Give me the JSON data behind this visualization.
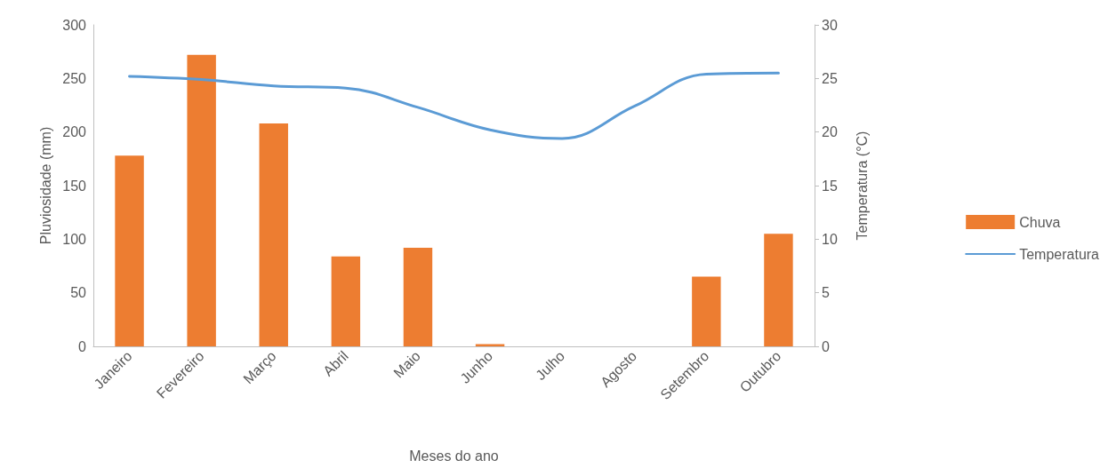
{
  "chart_data": {
    "type": "bar",
    "xlabel": "Meses do ano",
    "ylabel": "Pluviosidade (mm)",
    "y2label": "Temperatura (°C)",
    "categories": [
      "Janeiro",
      "Fevereiro",
      "Março",
      "Abril",
      "Maio",
      "Junho",
      "Julho",
      "Agosto",
      "Setembro",
      "Outubro"
    ],
    "series": [
      {
        "name": "Chuva",
        "color": "#ed7d31",
        "values": [
          178,
          272,
          208,
          84,
          92,
          2,
          0,
          0,
          65,
          105
        ]
      },
      {
        "name": "Temperatura",
        "type": "line",
        "axis": "y2",
        "color": "#5b9bd5",
        "values": [
          25.2,
          24.9,
          24.3,
          24.1,
          22.3,
          20.2,
          19.4,
          22.4,
          25.4,
          25.5
        ]
      }
    ],
    "ylim": [
      0,
      300
    ],
    "yticks": [
      0,
      50,
      100,
      150,
      200,
      250,
      300
    ],
    "y2lim": [
      0,
      30
    ],
    "y2ticks": [
      0,
      5,
      10,
      15,
      20,
      25,
      30
    ],
    "grid": false,
    "legend": "right",
    "marker": "none"
  }
}
